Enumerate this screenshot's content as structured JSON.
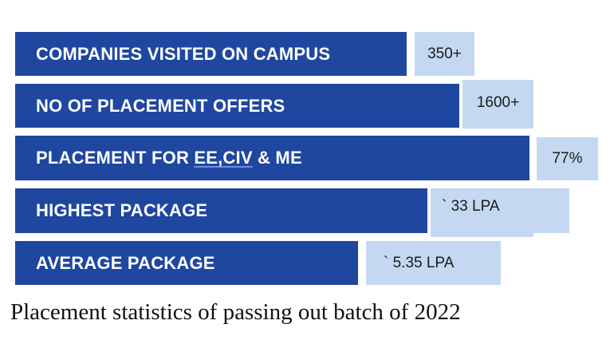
{
  "caption": "Placement statistics of passing out batch of 2022",
  "chart_data": {
    "type": "bar",
    "orientation": "horizontal",
    "categories": [
      "COMPANIES VISITED ON CAMPUS",
      "NO OF PLACEMENT OFFERS",
      "PLACEMENT FOR EE,CIV & ME",
      "HIGHEST PACKAGE",
      "AVERAGE PACKAGE"
    ],
    "value_labels": [
      "350+",
      "1600+",
      "77%",
      "` 33 LPA",
      "` 5.35 LPA"
    ],
    "bar_color": "#1f47a0",
    "label_box_color": "#c4d8f1"
  }
}
